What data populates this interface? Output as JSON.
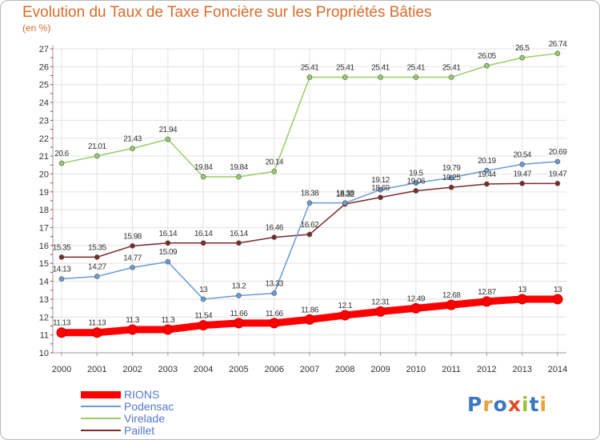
{
  "title": "Evolution du Taux de Taxe Foncière sur les Propriétés Bâties",
  "unit_label": "(en %)",
  "logo_text": "Proxiti",
  "chart_data": {
    "type": "line",
    "title": "Evolution du Taux de Taxe Foncière sur les Propriétés Bâties",
    "ylabel": "(en %)",
    "x": [
      "2000",
      "2001",
      "2002",
      "2003",
      "2004",
      "2005",
      "2006",
      "2007",
      "2008",
      "2009",
      "2010",
      "2011",
      "2012",
      "2013",
      "2014"
    ],
    "ylim": [
      10,
      27
    ],
    "yticks": [
      10,
      11,
      12,
      13,
      14,
      15,
      16,
      17,
      18,
      19,
      20,
      21,
      22,
      23,
      24,
      25,
      26,
      27
    ],
    "grid": true,
    "legend": "bottom-left",
    "series": [
      {
        "name": "RIONS",
        "color": "#ff0000",
        "labels": [
          "11.13",
          "11.13",
          "11.3",
          "11.3",
          "11.54",
          "11.66",
          "11.66",
          "11.86",
          "12.1",
          "12.31",
          "12.49",
          "12.68",
          "12.87",
          "13",
          "13"
        ],
        "values": [
          11.13,
          11.13,
          11.3,
          11.3,
          11.54,
          11.66,
          11.66,
          11.86,
          12.1,
          12.31,
          12.49,
          12.68,
          12.87,
          13,
          13
        ]
      },
      {
        "name": "Podensac",
        "color": "#6a9bd1",
        "labels": [
          "14.13",
          "14.27",
          "14.77",
          "15.09",
          "13",
          "13.2",
          "13.33",
          "18.38",
          "18.38",
          "19.12",
          "19.5",
          "19.79",
          "20.19",
          "20.54",
          "20.69"
        ],
        "values": [
          14.13,
          14.27,
          14.77,
          15.09,
          13,
          13.2,
          13.33,
          18.38,
          18.38,
          19.12,
          19.5,
          19.79,
          20.19,
          20.54,
          20.69
        ]
      },
      {
        "name": "Virelade",
        "color": "#99cc66",
        "labels": [
          "20.6",
          "21.01",
          "21.43",
          "21.94",
          "19.84",
          "19.84",
          "20.14",
          "25.41",
          "25.41",
          "25.41",
          "25.41",
          "25.41",
          "26.05",
          "26.5",
          "26.74"
        ],
        "values": [
          20.6,
          21.01,
          21.43,
          21.94,
          19.84,
          19.84,
          20.14,
          25.41,
          25.41,
          25.41,
          25.41,
          25.41,
          26.05,
          26.5,
          26.74
        ]
      },
      {
        "name": "Paillet",
        "color": "#7a2a2a",
        "labels": [
          "15.35",
          "15.35",
          "15.98",
          "16.14",
          "16.14",
          "16.14",
          "16.46",
          "16.62",
          "18.32",
          "18.69",
          "19.06",
          "19.25",
          "19.44",
          "19.47",
          "19.47"
        ],
        "values": [
          15.35,
          15.35,
          15.98,
          16.14,
          16.14,
          16.14,
          16.46,
          16.62,
          18.32,
          18.69,
          19.06,
          19.25,
          19.44,
          19.47,
          19.47
        ]
      }
    ]
  }
}
